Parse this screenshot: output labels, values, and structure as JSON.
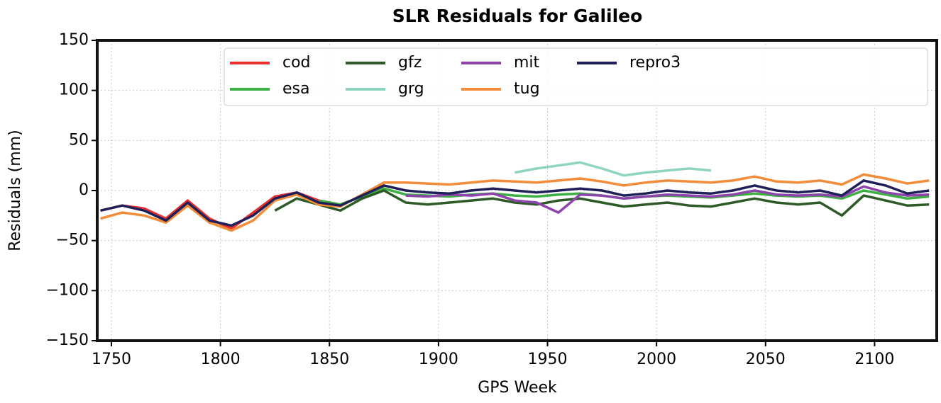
{
  "chart_data": {
    "type": "line",
    "title": "SLR Residuals for Galileo",
    "xlabel": "GPS Week",
    "ylabel": "Residuals (mm)",
    "x": [
      1745,
      1755,
      1765,
      1775,
      1785,
      1795,
      1805,
      1815,
      1825,
      1835,
      1845,
      1855,
      1865,
      1875,
      1885,
      1895,
      1905,
      1915,
      1925,
      1935,
      1945,
      1955,
      1965,
      1975,
      1985,
      1995,
      2005,
      2015,
      2025,
      2035,
      2045,
      2055,
      2065,
      2075,
      2085,
      2095,
      2105,
      2115,
      2125
    ],
    "series": [
      {
        "name": "cod",
        "color": "#e8302f",
        "values": [
          -20,
          -15,
          -18,
          -28,
          -10,
          -28,
          -38,
          -22,
          -6,
          -2,
          -10,
          -14,
          -6,
          3,
          null,
          null,
          null,
          null,
          null,
          null,
          null,
          null,
          null,
          null,
          null,
          null,
          null,
          null,
          null,
          null,
          null,
          null,
          null,
          null,
          null,
          null,
          null,
          null,
          null
        ]
      },
      {
        "name": "esa",
        "color": "#3cb043",
        "values": [
          null,
          null,
          null,
          null,
          null,
          null,
          null,
          null,
          null,
          null,
          -10,
          -14,
          -6,
          2,
          -4,
          -5,
          -6,
          -4,
          -3,
          -5,
          -6,
          -4,
          -3,
          -5,
          -8,
          -6,
          -5,
          -6,
          -7,
          -5,
          -3,
          -5,
          -6,
          -5,
          -8,
          0,
          -4,
          -8,
          -6
        ]
      },
      {
        "name": "gfz",
        "color": "#2d5a27",
        "values": [
          null,
          null,
          null,
          null,
          null,
          null,
          null,
          null,
          -20,
          -8,
          -14,
          -20,
          -8,
          0,
          -12,
          -14,
          -12,
          -10,
          -8,
          -12,
          -14,
          -10,
          -8,
          -12,
          -16,
          -14,
          -12,
          -15,
          -16,
          -12,
          -8,
          -12,
          -14,
          -12,
          -25,
          -5,
          -10,
          -15,
          -14
        ]
      },
      {
        "name": "grg",
        "color": "#8fd4bd",
        "values": [
          null,
          null,
          null,
          null,
          null,
          null,
          null,
          null,
          null,
          null,
          null,
          null,
          null,
          null,
          null,
          null,
          null,
          null,
          null,
          18,
          22,
          25,
          28,
          22,
          15,
          18,
          20,
          22,
          20,
          null,
          null,
          null,
          null,
          null,
          null,
          null,
          null,
          null,
          null
        ]
      },
      {
        "name": "mit",
        "color": "#8e44ad",
        "values": [
          null,
          null,
          null,
          null,
          null,
          null,
          null,
          null,
          null,
          null,
          null,
          null,
          null,
          null,
          -5,
          -6,
          -4,
          -5,
          -3,
          -10,
          -12,
          -22,
          -4,
          -5,
          -8,
          -6,
          -4,
          -5,
          -6,
          -4,
          0,
          -4,
          -5,
          -4,
          -6,
          4,
          -2,
          -5,
          -4
        ]
      },
      {
        "name": "tug",
        "color": "#f28c38",
        "values": [
          -28,
          -22,
          -25,
          -32,
          -15,
          -32,
          -40,
          -30,
          -10,
          -4,
          -14,
          -16,
          -4,
          8,
          8,
          7,
          6,
          8,
          10,
          9,
          8,
          10,
          12,
          9,
          5,
          8,
          10,
          9,
          8,
          10,
          14,
          9,
          8,
          10,
          6,
          16,
          12,
          7,
          10
        ]
      },
      {
        "name": "repro3",
        "color": "#1f1f5a",
        "values": [
          -20,
          -15,
          -20,
          -30,
          -12,
          -30,
          -35,
          -25,
          -8,
          -2,
          -12,
          -15,
          -5,
          5,
          0,
          -2,
          -3,
          0,
          2,
          0,
          -2,
          0,
          2,
          0,
          -5,
          -3,
          0,
          -2,
          -3,
          0,
          5,
          0,
          -2,
          0,
          -5,
          10,
          5,
          -3,
          0
        ]
      }
    ],
    "xlim": [
      1743.5,
      2128.5
    ],
    "ylim": [
      -150,
      150
    ],
    "xticks": [
      1750,
      1800,
      1850,
      1900,
      1950,
      2000,
      2050,
      2100
    ],
    "yticks": [
      {
        "value": -150,
        "label": "−150"
      },
      {
        "value": -100,
        "label": "−100"
      },
      {
        "value": -50,
        "label": "−50"
      },
      0,
      50,
      100,
      150
    ],
    "grid": true,
    "legend": "upper right"
  }
}
